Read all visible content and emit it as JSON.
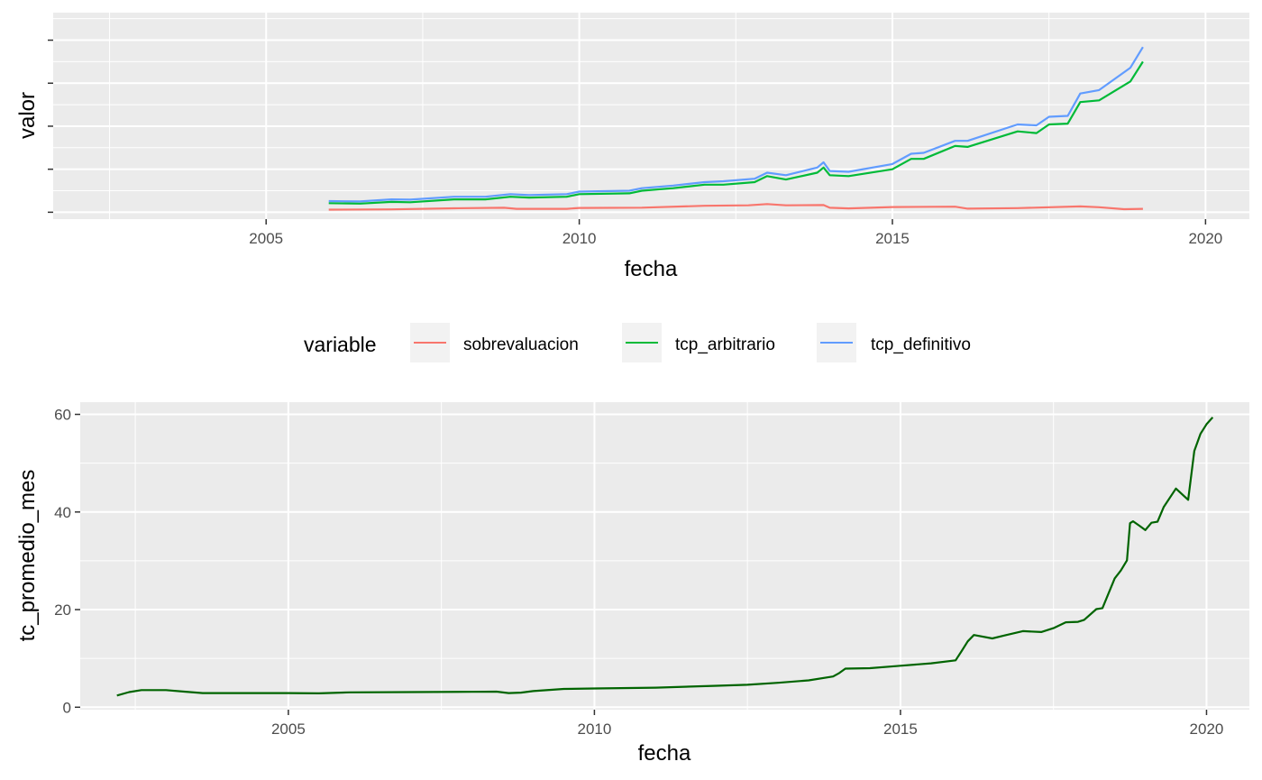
{
  "chart_data": [
    {
      "type": "line",
      "xlabel": "fecha",
      "ylabel": "valor",
      "x_ticks": [
        2005,
        2010,
        2015,
        2020
      ],
      "xlim": [
        2001.6,
        2020.7
      ],
      "ylim": [
        -8,
        232
      ],
      "y_tick_labels_shown": false,
      "grid": true,
      "legend": {
        "title": "variable",
        "placement": "bottom",
        "entries": [
          "sobrevaluacion",
          "tcp_arbitrario",
          "tcp_definitivo"
        ]
      },
      "series": [
        {
          "name": "sobrevaluacion",
          "color": "#f8766d",
          "points": [
            [
              2006.0,
              3.0
            ],
            [
              2007.0,
              3.3
            ],
            [
              2008.0,
              4.6
            ],
            [
              2008.8,
              5.2
            ],
            [
              2009.0,
              4.0
            ],
            [
              2009.8,
              4.0
            ],
            [
              2010.0,
              5.0
            ],
            [
              2011.0,
              5.3
            ],
            [
              2012.0,
              7.5
            ],
            [
              2012.7,
              8.0
            ],
            [
              2013.0,
              9.5
            ],
            [
              2013.3,
              8.0
            ],
            [
              2013.9,
              8.4
            ],
            [
              2014.0,
              5.2
            ],
            [
              2014.3,
              4.5
            ],
            [
              2015.0,
              6.0
            ],
            [
              2016.0,
              6.5
            ],
            [
              2016.2,
              4.2
            ],
            [
              2017.0,
              4.8
            ],
            [
              2018.0,
              6.8
            ],
            [
              2018.3,
              5.8
            ],
            [
              2018.7,
              3.5
            ],
            [
              2019.0,
              4.0
            ]
          ]
        },
        {
          "name": "tcp_arbitrario",
          "color": "#00ba38",
          "points": [
            [
              2006.0,
              10.5
            ],
            [
              2006.5,
              10.0
            ],
            [
              2007.0,
              12.0
            ],
            [
              2007.3,
              11.6
            ],
            [
              2008.0,
              15.0
            ],
            [
              2008.5,
              15.0
            ],
            [
              2008.9,
              18.0
            ],
            [
              2009.2,
              17.0
            ],
            [
              2009.8,
              18.0
            ],
            [
              2010.0,
              21.0
            ],
            [
              2010.8,
              22.0
            ],
            [
              2011.0,
              25.0
            ],
            [
              2011.5,
              28.0
            ],
            [
              2012.0,
              32.0
            ],
            [
              2012.3,
              32.0
            ],
            [
              2012.8,
              35.0
            ],
            [
              2013.0,
              42.0
            ],
            [
              2013.3,
              38.0
            ],
            [
              2013.8,
              46.0
            ],
            [
              2013.9,
              52.0
            ],
            [
              2014.0,
              43.0
            ],
            [
              2014.3,
              42.0
            ],
            [
              2015.0,
              50.0
            ],
            [
              2015.3,
              62.0
            ],
            [
              2015.5,
              62.0
            ],
            [
              2016.0,
              77.0
            ],
            [
              2016.2,
              76.0
            ],
            [
              2017.0,
              94.0
            ],
            [
              2017.3,
              92.0
            ],
            [
              2017.5,
              102.0
            ],
            [
              2017.8,
              103.0
            ],
            [
              2018.0,
              128.0
            ],
            [
              2018.3,
              130.0
            ],
            [
              2018.8,
              152.0
            ],
            [
              2019.0,
              175.0
            ]
          ]
        },
        {
          "name": "tcp_definitivo",
          "color": "#619cff",
          "points": [
            [
              2006.0,
              13.0
            ],
            [
              2006.5,
              12.5
            ],
            [
              2007.0,
              15.0
            ],
            [
              2007.3,
              14.6
            ],
            [
              2008.0,
              18.0
            ],
            [
              2008.5,
              18.0
            ],
            [
              2008.9,
              21.0
            ],
            [
              2009.2,
              20.0
            ],
            [
              2009.8,
              21.0
            ],
            [
              2010.0,
              24.0
            ],
            [
              2010.8,
              25.0
            ],
            [
              2011.0,
              28.0
            ],
            [
              2011.5,
              31.0
            ],
            [
              2012.0,
              35.0
            ],
            [
              2012.3,
              36.0
            ],
            [
              2012.8,
              39.0
            ],
            [
              2013.0,
              46.0
            ],
            [
              2013.3,
              43.0
            ],
            [
              2013.8,
              52.0
            ],
            [
              2013.9,
              58.0
            ],
            [
              2014.0,
              48.0
            ],
            [
              2014.3,
              47.0
            ],
            [
              2015.0,
              56.0
            ],
            [
              2015.3,
              68.0
            ],
            [
              2015.5,
              69.0
            ],
            [
              2016.0,
              83.0
            ],
            [
              2016.2,
              83.0
            ],
            [
              2017.0,
              102.0
            ],
            [
              2017.3,
              101.0
            ],
            [
              2017.5,
              111.0
            ],
            [
              2017.8,
              112.0
            ],
            [
              2018.0,
              138.0
            ],
            [
              2018.3,
              142.0
            ],
            [
              2018.8,
              168.0
            ],
            [
              2019.0,
              192.0
            ]
          ]
        }
      ]
    },
    {
      "type": "line",
      "xlabel": "fecha",
      "ylabel": "tc_promedio_mes",
      "x_ticks": [
        2005,
        2010,
        2015,
        2020
      ],
      "y_ticks": [
        0,
        20,
        40,
        60
      ],
      "xlim": [
        2001.6,
        2020.7
      ],
      "ylim": [
        -0.5,
        62.5
      ],
      "grid": true,
      "series": [
        {
          "color": "#006400",
          "points": [
            [
              2002.2,
              2.4
            ],
            [
              2002.4,
              3.1
            ],
            [
              2002.6,
              3.5
            ],
            [
              2003.0,
              3.5
            ],
            [
              2003.3,
              3.2
            ],
            [
              2003.6,
              2.9
            ],
            [
              2004.0,
              2.9
            ],
            [
              2004.5,
              2.9
            ],
            [
              2005.0,
              2.9
            ],
            [
              2005.5,
              2.85
            ],
            [
              2006.0,
              3.05
            ],
            [
              2007.0,
              3.1
            ],
            [
              2008.0,
              3.15
            ],
            [
              2008.4,
              3.2
            ],
            [
              2008.6,
              2.9
            ],
            [
              2008.8,
              3.0
            ],
            [
              2009.0,
              3.3
            ],
            [
              2009.5,
              3.75
            ],
            [
              2010.0,
              3.85
            ],
            [
              2011.0,
              4.0
            ],
            [
              2012.0,
              4.4
            ],
            [
              2012.5,
              4.6
            ],
            [
              2013.0,
              5.0
            ],
            [
              2013.5,
              5.5
            ],
            [
              2013.9,
              6.3
            ],
            [
              2014.0,
              7.0
            ],
            [
              2014.1,
              7.9
            ],
            [
              2014.5,
              8.0
            ],
            [
              2015.0,
              8.5
            ],
            [
              2015.5,
              9.0
            ],
            [
              2015.9,
              9.6
            ],
            [
              2016.0,
              11.5
            ],
            [
              2016.1,
              13.5
            ],
            [
              2016.2,
              14.8
            ],
            [
              2016.5,
              14.1
            ],
            [
              2016.7,
              14.7
            ],
            [
              2017.0,
              15.6
            ],
            [
              2017.3,
              15.4
            ],
            [
              2017.5,
              16.2
            ],
            [
              2017.7,
              17.4
            ],
            [
              2017.9,
              17.5
            ],
            [
              2018.0,
              17.9
            ],
            [
              2018.2,
              20.1
            ],
            [
              2018.3,
              20.3
            ],
            [
              2018.5,
              26.4
            ],
            [
              2018.6,
              28.0
            ],
            [
              2018.7,
              30.1
            ],
            [
              2018.75,
              37.7
            ],
            [
              2018.8,
              38.1
            ],
            [
              2018.9,
              37.2
            ],
            [
              2019.0,
              36.3
            ],
            [
              2019.1,
              37.8
            ],
            [
              2019.2,
              38.0
            ],
            [
              2019.3,
              41.0
            ],
            [
              2019.5,
              44.8
            ],
            [
              2019.7,
              42.5
            ],
            [
              2019.8,
              52.5
            ],
            [
              2019.9,
              56.0
            ],
            [
              2020.0,
              58.0
            ],
            [
              2020.1,
              59.4
            ]
          ]
        }
      ]
    }
  ]
}
